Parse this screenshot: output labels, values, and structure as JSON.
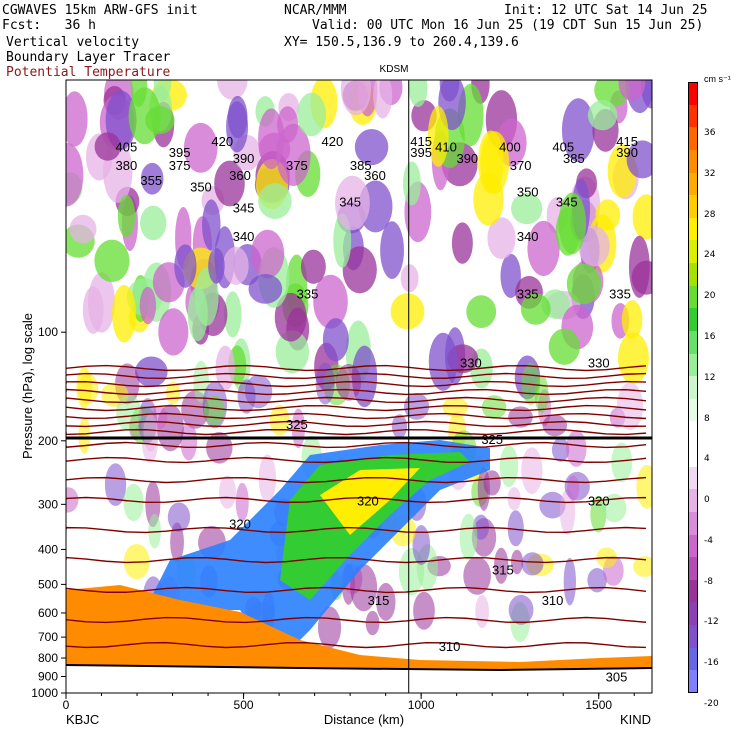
{
  "header": {
    "model": "CGWAVES 15km ARW-GFS init",
    "org": "NCAR/MMM",
    "init": "Init: 12 UTC Sat 14 Jun 25",
    "fcst": "Fcst:   36 h",
    "valid": "Valid: 00 UTC Mon 16 Jun 25 (19 CDT Sun 15 Jun 25)",
    "field1": "Vertical velocity",
    "field2": "Boundary Layer Tracer",
    "field3": "Potential Temperature",
    "xy": "XY= 150.5,136.9 to 260.4,139.6"
  },
  "colorbar": {
    "units": "cm s⁻¹",
    "ticks": [
      "36",
      "32",
      "28",
      "24",
      "20",
      "16",
      "12",
      "8",
      "4",
      "0",
      "-4",
      "-8",
      "-12",
      "-16",
      "-20"
    ],
    "colors": [
      "#ff0000",
      "#ff3300",
      "#ff6600",
      "#ff8c00",
      "#ffaa00",
      "#ffcc00",
      "#ffee00",
      "#d9f000",
      "#a8e000",
      "#66dd33",
      "#33cc33",
      "#66e066",
      "#99ee99",
      "#ccf5cc",
      "#e6fbe6",
      "#ffffff",
      "#ffffff",
      "#f2d9f2",
      "#e6b3e6",
      "#d98cd9",
      "#cc66cc",
      "#b34db3",
      "#993399",
      "#8c40b3",
      "#7f52cc",
      "#6666e6",
      "#7f7fff"
    ]
  },
  "chart_data": {
    "type": "cross-section",
    "title": "KDSM",
    "xlabel": "Distance (km)",
    "ylabel": "Pressure (hPa), log scale",
    "x_ticks": [
      "0",
      "500",
      "1000",
      "1500"
    ],
    "x_endpoints": {
      "left": "KBJC",
      "right": "KIND"
    },
    "y_ticks": [
      "100",
      "200",
      "300",
      "400",
      "500",
      "600",
      "700",
      "800",
      "900",
      "1000"
    ],
    "ylim": [
      1000,
      20
    ],
    "y_scale": "log",
    "vertical_marker_km": 965,
    "theta_labels": [
      {
        "text": "420",
        "x": 440,
        "y": 81
      },
      {
        "text": "420",
        "x": 750,
        "y": 81
      },
      {
        "text": "415",
        "x": 1000,
        "y": 81
      },
      {
        "text": "415",
        "x": 1580,
        "y": 81
      },
      {
        "text": "405",
        "x": 170,
        "y": 88
      },
      {
        "text": "410",
        "x": 1070,
        "y": 88
      },
      {
        "text": "400",
        "x": 1250,
        "y": 88
      },
      {
        "text": "405",
        "x": 1400,
        "y": 88
      },
      {
        "text": "395",
        "x": 320,
        "y": 95
      },
      {
        "text": "395",
        "x": 1000,
        "y": 95
      },
      {
        "text": "390",
        "x": 1580,
        "y": 95
      },
      {
        "text": "390",
        "x": 500,
        "y": 103
      },
      {
        "text": "390",
        "x": 1130,
        "y": 103
      },
      {
        "text": "385",
        "x": 1430,
        "y": 103
      },
      {
        "text": "380",
        "x": 170,
        "y": 112
      },
      {
        "text": "375",
        "x": 320,
        "y": 112
      },
      {
        "text": "375",
        "x": 650,
        "y": 112
      },
      {
        "text": "385",
        "x": 830,
        "y": 112
      },
      {
        "text": "370",
        "x": 1280,
        "y": 112
      },
      {
        "text": "360",
        "x": 490,
        "y": 125
      },
      {
        "text": "360",
        "x": 870,
        "y": 125
      },
      {
        "text": "355",
        "x": 240,
        "y": 132
      },
      {
        "text": "350",
        "x": 380,
        "y": 140
      },
      {
        "text": "350",
        "x": 1300,
        "y": 147
      },
      {
        "text": "345",
        "x": 800,
        "y": 160
      },
      {
        "text": "345",
        "x": 1410,
        "y": 160
      },
      {
        "text": "345",
        "x": 500,
        "y": 168
      },
      {
        "text": "340",
        "x": 500,
        "y": 205
      },
      {
        "text": "340",
        "x": 1300,
        "y": 205
      },
      {
        "text": "335",
        "x": 680,
        "y": 280
      },
      {
        "text": "335",
        "x": 1300,
        "y": 280
      },
      {
        "text": "335",
        "x": 1560,
        "y": 280
      },
      {
        "text": "330",
        "x": 1140,
        "y": 370
      },
      {
        "text": "330",
        "x": 1500,
        "y": 370
      },
      {
        "text": "325",
        "x": 650,
        "y": 450
      },
      {
        "text": "325",
        "x": 1200,
        "y": 470
      },
      {
        "text": "320",
        "x": 850,
        "y": 550
      },
      {
        "text": "320",
        "x": 1500,
        "y": 550
      },
      {
        "text": "320",
        "x": 490,
        "y": 580
      },
      {
        "text": "315",
        "x": 1230,
        "y": 640
      },
      {
        "text": "315",
        "x": 880,
        "y": 680
      },
      {
        "text": "310",
        "x": 1370,
        "y": 680
      },
      {
        "text": "310",
        "x": 1080,
        "y": 740
      },
      {
        "text": "305",
        "x": 1550,
        "y": 780
      }
    ]
  }
}
